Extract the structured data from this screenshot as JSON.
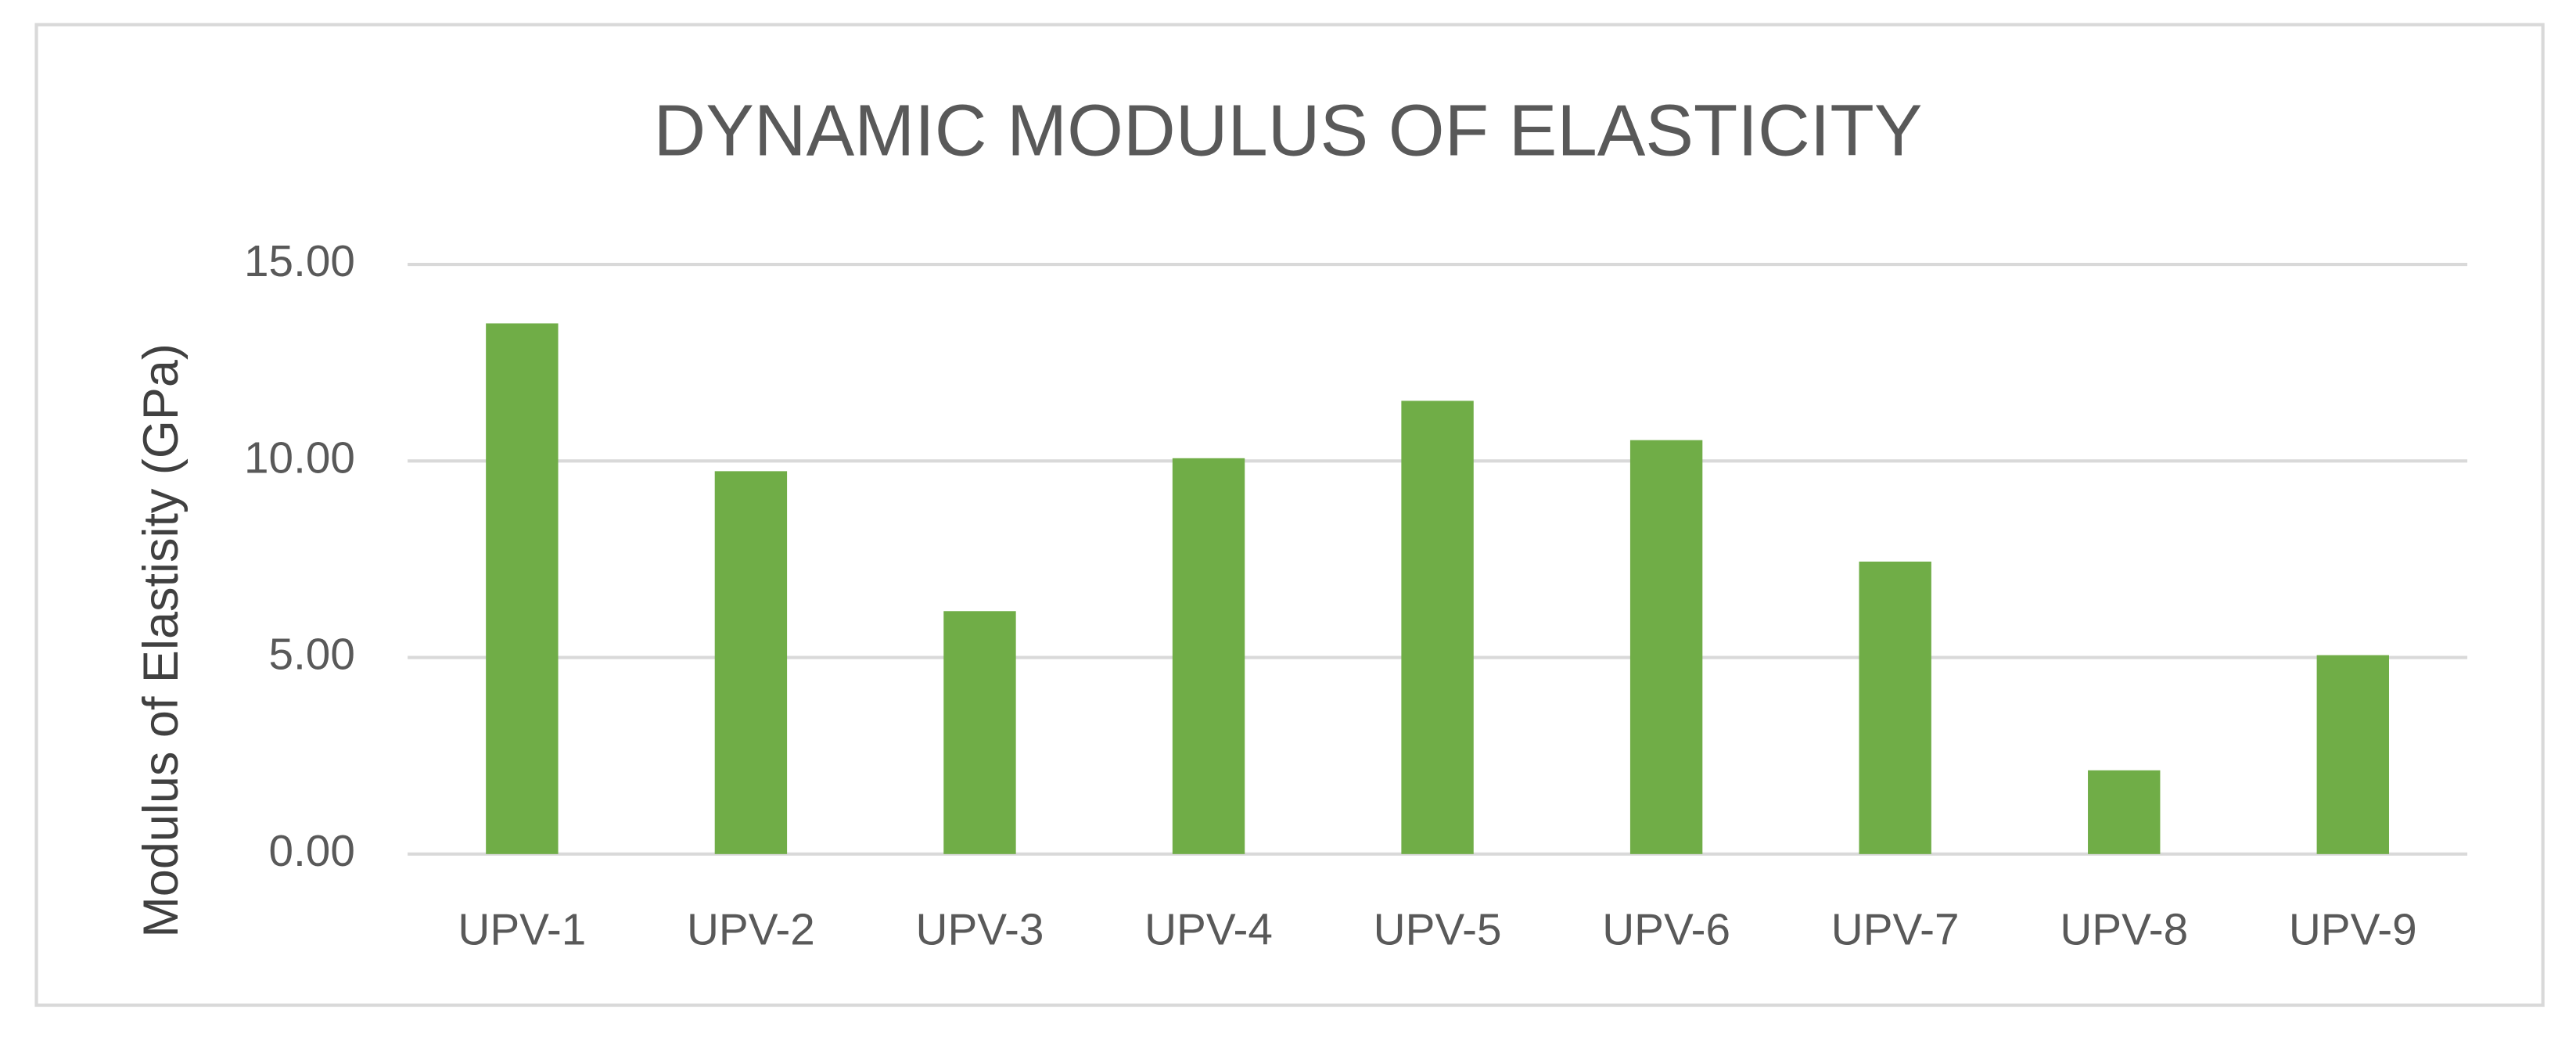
{
  "chart_data": {
    "type": "bar",
    "title": "DYNAMIC MODULUS OF ELASTICITY",
    "y_label": "Modulus of Elastisity (GPa)",
    "categories": [
      "UPV-1",
      "UPV-2",
      "UPV-3",
      "UPV-4",
      "UPV-5",
      "UPV-6",
      "UPV-7",
      "UPV-8",
      "UPV-9"
    ],
    "values": [
      13.5,
      9.74,
      6.18,
      10.07,
      11.53,
      10.53,
      7.44,
      2.13,
      5.06
    ],
    "color": "#70ad47",
    "ylim": [
      0,
      15
    ],
    "yticks": [
      {
        "value": 0,
        "label": "0.00"
      },
      {
        "value": 5,
        "label": "5.00"
      },
      {
        "value": 10,
        "label": "10.00"
      },
      {
        "value": 15,
        "label": "15.00"
      }
    ],
    "grid": true
  }
}
